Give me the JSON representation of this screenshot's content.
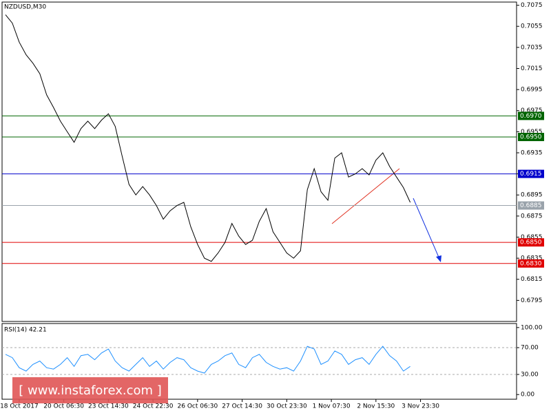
{
  "chart_data": [
    {
      "type": "line",
      "title": "NZDUSD,M30",
      "color": "#000000",
      "x": [
        0,
        1,
        2,
        3,
        4,
        5,
        6,
        7,
        8,
        9,
        10,
        11,
        12,
        13,
        14,
        15,
        16,
        17,
        18,
        19,
        20,
        21,
        22,
        23,
        24,
        25,
        26,
        27,
        28,
        29,
        30,
        31,
        32,
        33,
        34,
        35,
        36,
        37,
        38,
        39,
        40,
        41,
        42,
        43,
        44,
        45,
        46,
        47,
        48,
        49,
        50,
        51,
        52,
        53,
        54,
        55,
        56,
        57,
        58,
        59
      ],
      "values": [
        0.7066,
        0.7058,
        0.704,
        0.7028,
        0.702,
        0.701,
        0.699,
        0.6978,
        0.6965,
        0.6955,
        0.6945,
        0.6958,
        0.6965,
        0.6958,
        0.6966,
        0.6972,
        0.696,
        0.6932,
        0.6905,
        0.6895,
        0.6903,
        0.6895,
        0.6885,
        0.6872,
        0.688,
        0.6885,
        0.6888,
        0.6865,
        0.6848,
        0.6835,
        0.6832,
        0.684,
        0.685,
        0.6868,
        0.6856,
        0.6848,
        0.6852,
        0.687,
        0.6882,
        0.686,
        0.685,
        0.684,
        0.6835,
        0.6842,
        0.69,
        0.692,
        0.6898,
        0.689,
        0.693,
        0.6935,
        0.6912,
        0.6915,
        0.692,
        0.6914,
        0.6928,
        0.6935,
        0.6922,
        0.6912,
        0.6902,
        0.6888
      ],
      "xlim": [
        -0.5,
        74.5
      ],
      "xticks": [
        {
          "value": 2,
          "label": "18 Oct 2017"
        },
        {
          "value": 8.5,
          "label": "20 Oct 06:30"
        },
        {
          "value": 15,
          "label": "23 Oct 14:30"
        },
        {
          "value": 21.5,
          "label": "24 Oct 22:30"
        },
        {
          "value": 28,
          "label": "26 Oct 06:30"
        },
        {
          "value": 34.5,
          "label": "27 Oct 14:30"
        },
        {
          "value": 41,
          "label": "30 Oct 23:30"
        },
        {
          "value": 47.5,
          "label": "1 Nov 07:30"
        },
        {
          "value": 54,
          "label": "2 Nov 15:30"
        },
        {
          "value": 60.5,
          "label": "3 Nov 23:30"
        }
      ],
      "ylim": [
        0.6775,
        0.7078
      ],
      "yticks": [
        0.7075,
        0.7055,
        0.7035,
        0.7015,
        0.6995,
        0.6975,
        0.6955,
        0.6935,
        0.6915,
        0.6895,
        0.6875,
        0.6855,
        0.6835,
        0.6815,
        0.6795
      ],
      "levels": [
        {
          "value": 0.697,
          "label": "0.6970",
          "color": "#006400"
        },
        {
          "value": 0.695,
          "label": "0.6950",
          "color": "#006400"
        },
        {
          "value": 0.6915,
          "label": "0.6915",
          "color": "#0000cc"
        },
        {
          "value": 0.6885,
          "label": "0.6885",
          "color": "#9aa3ab"
        },
        {
          "value": 0.685,
          "label": "0.6850",
          "color": "#e00000"
        },
        {
          "value": 0.683,
          "label": "0.6830",
          "color": "#e00000"
        }
      ],
      "watermark": "[  www.instaforex.com  ]"
    },
    {
      "type": "line",
      "title": "RSI(14) 42.21",
      "color": "#1e90ff",
      "x": [
        0,
        1,
        2,
        3,
        4,
        5,
        6,
        7,
        8,
        9,
        10,
        11,
        12,
        13,
        14,
        15,
        16,
        17,
        18,
        19,
        20,
        21,
        22,
        23,
        24,
        25,
        26,
        27,
        28,
        29,
        30,
        31,
        32,
        33,
        34,
        35,
        36,
        37,
        38,
        39,
        40,
        41,
        42,
        43,
        44,
        45,
        46,
        47,
        48,
        49,
        50,
        51,
        52,
        53,
        54,
        55,
        56,
        57,
        58,
        59
      ],
      "values": [
        60,
        55,
        40,
        35,
        45,
        50,
        40,
        38,
        45,
        55,
        42,
        58,
        60,
        52,
        62,
        68,
        50,
        40,
        35,
        45,
        55,
        42,
        50,
        38,
        48,
        55,
        52,
        40,
        35,
        32,
        45,
        50,
        58,
        62,
        45,
        40,
        55,
        60,
        48,
        42,
        38,
        40,
        35,
        50,
        72,
        68,
        45,
        50,
        65,
        60,
        45,
        52,
        55,
        45,
        60,
        72,
        58,
        50,
        35,
        42
      ],
      "xlim": [
        -0.5,
        74.5
      ],
      "ylim": [
        -7,
        106
      ],
      "yticks": [
        {
          "value": 100,
          "label": "100.00"
        },
        {
          "value": 70,
          "label": "70.00"
        },
        {
          "value": 30,
          "label": "30.00"
        },
        {
          "value": 0,
          "label": "0.00"
        }
      ],
      "grid_dashed": [
        70,
        30
      ]
    }
  ]
}
